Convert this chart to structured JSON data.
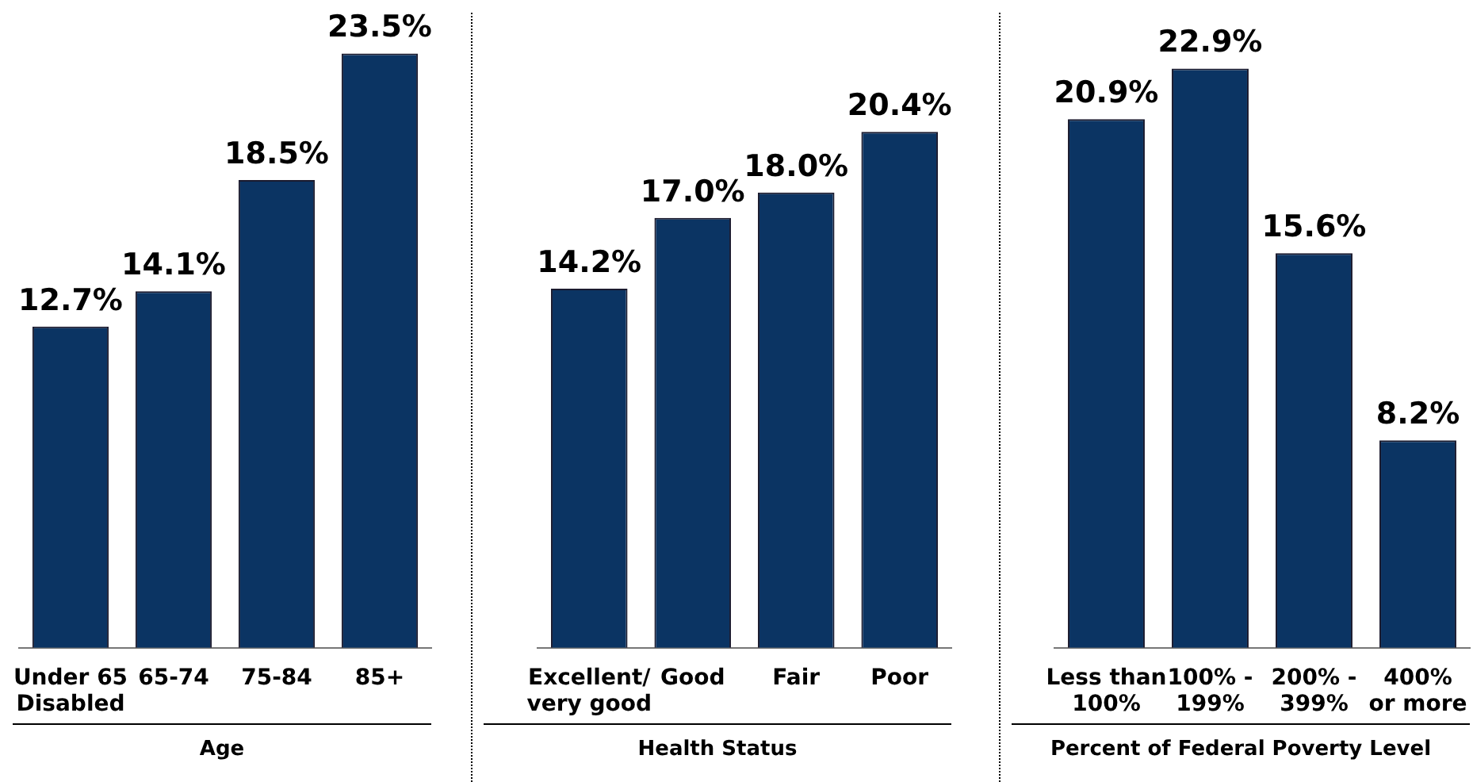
{
  "chart_data": [
    {
      "type": "bar",
      "xlabel": "Age",
      "categories": [
        "Under 65\nDisabled",
        "65-74",
        "75-84",
        "85+"
      ],
      "values": [
        12.7,
        14.1,
        18.5,
        23.5
      ],
      "value_labels": [
        "12.7%",
        "14.1%",
        "18.5%",
        "23.5%"
      ],
      "color": "#0b3463",
      "tick_labels": "x"
    },
    {
      "type": "bar",
      "xlabel": "Health Status",
      "categories": [
        "Excellent/\nvery good",
        "Good",
        "Fair",
        "Poor"
      ],
      "values": [
        14.2,
        17.0,
        18.0,
        20.4
      ],
      "value_labels": [
        "14.2%",
        "17.0%",
        "18.0%",
        "20.4%"
      ],
      "color": "#0b3463",
      "tick_labels": "x"
    },
    {
      "type": "bar",
      "xlabel": "Percent of Federal Poverty Level",
      "categories": [
        "Less than\n100%",
        "100% -\n199%",
        "200% -\n399%",
        "400%\nor more"
      ],
      "values": [
        20.9,
        22.9,
        15.6,
        8.2
      ],
      "value_labels": [
        "20.9%",
        "22.9%",
        "15.6%",
        "8.2%"
      ],
      "color": "#0b3463",
      "tick_labels": "x"
    }
  ]
}
